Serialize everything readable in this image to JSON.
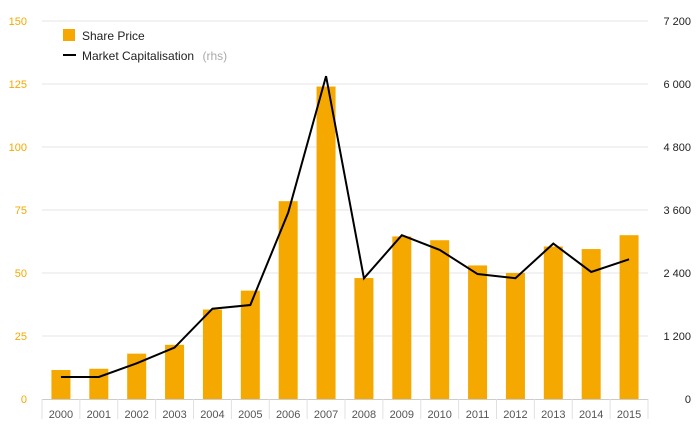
{
  "chart_data": {
    "type": "bar",
    "categories": [
      "2000",
      "2001",
      "2002",
      "2003",
      "2004",
      "2005",
      "2006",
      "2007",
      "2008",
      "2009",
      "2010",
      "2011",
      "2012",
      "2013",
      "2014",
      "2015"
    ],
    "series": [
      {
        "name": "Share Price",
        "type": "bar",
        "axis": "left",
        "color": "#f5a800",
        "values": [
          11.5,
          12,
          18,
          21.5,
          35.5,
          43,
          78.5,
          124,
          48,
          64.5,
          63,
          53,
          50,
          60.5,
          59.5,
          65
        ]
      },
      {
        "name": "Market Capitalisation",
        "name_suffix": "(rhs)",
        "type": "line",
        "axis": "right",
        "color": "#000000",
        "values": [
          420,
          420,
          680,
          980,
          1720,
          1790,
          3550,
          6150,
          2300,
          3120,
          2840,
          2380,
          2300,
          2960,
          2420,
          2660
        ]
      }
    ],
    "y_left": {
      "ylim": [
        0,
        150
      ],
      "ticks": [
        0,
        25,
        50,
        75,
        100,
        125,
        150
      ],
      "tick_labels": [
        "0",
        "25",
        "50",
        "75",
        "100",
        "125",
        "150"
      ]
    },
    "y_right": {
      "ylim": [
        0,
        7200
      ],
      "ticks": [
        0,
        1200,
        2400,
        3600,
        4800,
        6000,
        7200
      ],
      "tick_labels": [
        "0",
        "1 200",
        "2 400",
        "3 600",
        "4 800",
        "6 000",
        "7 200"
      ]
    },
    "grid": true,
    "legend_position": "top-left"
  }
}
